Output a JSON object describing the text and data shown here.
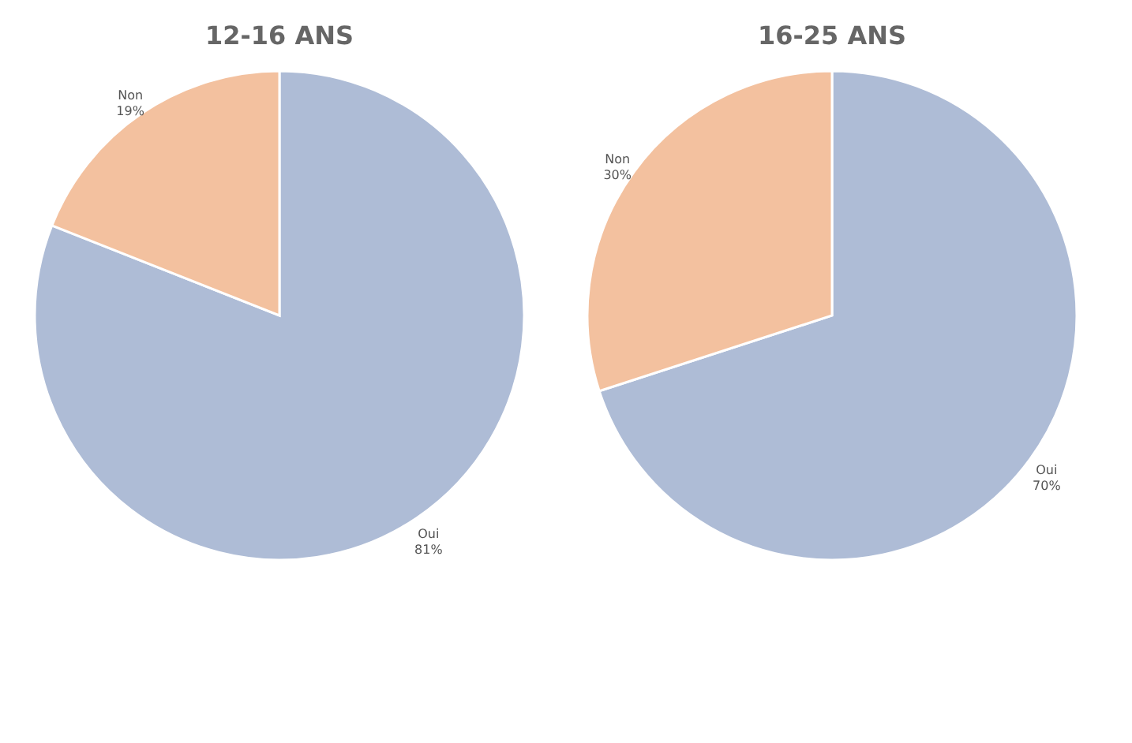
{
  "chart_data": [
    {
      "type": "pie",
      "title": "12-16 ANS",
      "categories": [
        "Oui",
        "Non"
      ],
      "values": [
        81,
        19
      ],
      "value_labels": [
        "81%",
        "19%"
      ],
      "colors": [
        "#aebcd6",
        "#f3c19f"
      ],
      "legend": false
    },
    {
      "type": "pie",
      "title": "16-25 ANS",
      "categories": [
        "Oui",
        "Non"
      ],
      "values": [
        70,
        30
      ],
      "value_labels": [
        "70%",
        "30%"
      ],
      "colors": [
        "#aebcd6",
        "#f3c19f"
      ],
      "legend": false
    }
  ]
}
